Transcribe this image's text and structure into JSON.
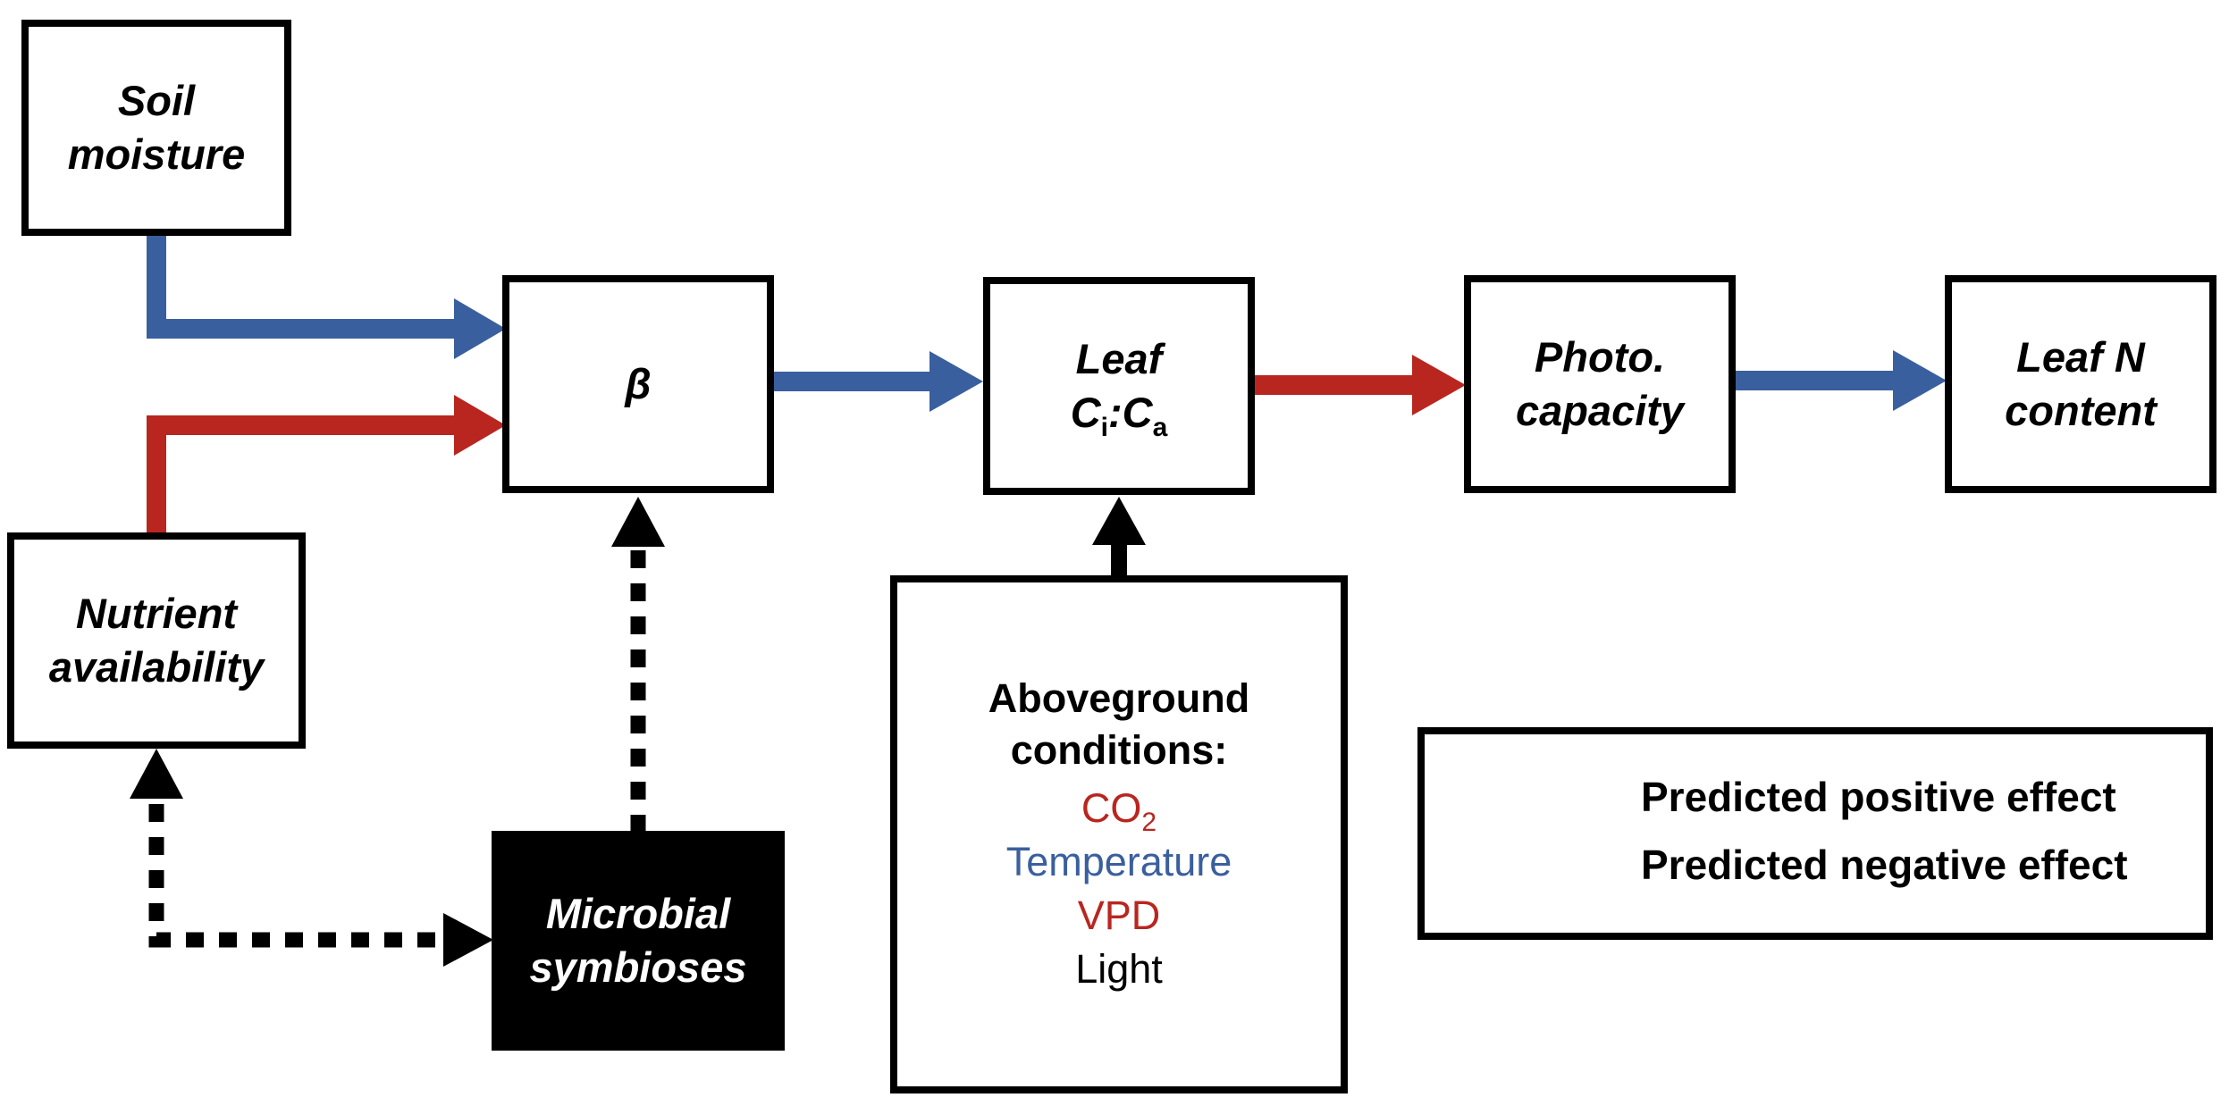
{
  "colors": {
    "positive": "#3a5f9e",
    "negative": "#b8261f",
    "neutral": "#000000"
  },
  "nodes": {
    "soil_moisture": [
      "Soil",
      "moisture"
    ],
    "nutrient_availability": [
      "Nutrient",
      "availability"
    ],
    "beta": "β",
    "leaf_ci_ca": {
      "line1": "Leaf",
      "ci_main": "C",
      "ci_sub": "i",
      "sep": ":",
      "ca_main": "C",
      "ca_sub": "a"
    },
    "photo_capacity": [
      "Photo.",
      "capacity"
    ],
    "leaf_n_content": [
      "Leaf N",
      "content"
    ],
    "microbial_symbioses": [
      "Microbial",
      "symbioses"
    ]
  },
  "aboveground": {
    "title": [
      "Aboveground",
      "conditions:"
    ],
    "co2": {
      "main": "CO",
      "sub": "2"
    },
    "temperature": "Temperature",
    "vpd": "VPD",
    "light": "Light"
  },
  "legend": {
    "positive": "Predicted positive effect",
    "negative": "Predicted negative effect"
  },
  "edges": [
    {
      "from": "soil_moisture",
      "to": "beta",
      "effect": "positive"
    },
    {
      "from": "nutrient_availability",
      "to": "beta",
      "effect": "negative"
    },
    {
      "from": "beta",
      "to": "leaf_ci_ca",
      "effect": "positive"
    },
    {
      "from": "leaf_ci_ca",
      "to": "photo_capacity",
      "effect": "negative"
    },
    {
      "from": "photo_capacity",
      "to": "leaf_n_content",
      "effect": "positive"
    },
    {
      "from": "aboveground_conditions",
      "to": "leaf_ci_ca",
      "effect": "neutral"
    },
    {
      "from": "microbial_symbioses",
      "to": "beta",
      "effect": "dotted"
    },
    {
      "from": "microbial_symbioses",
      "to": "nutrient_availability",
      "effect": "dotted-bidirectional"
    }
  ]
}
